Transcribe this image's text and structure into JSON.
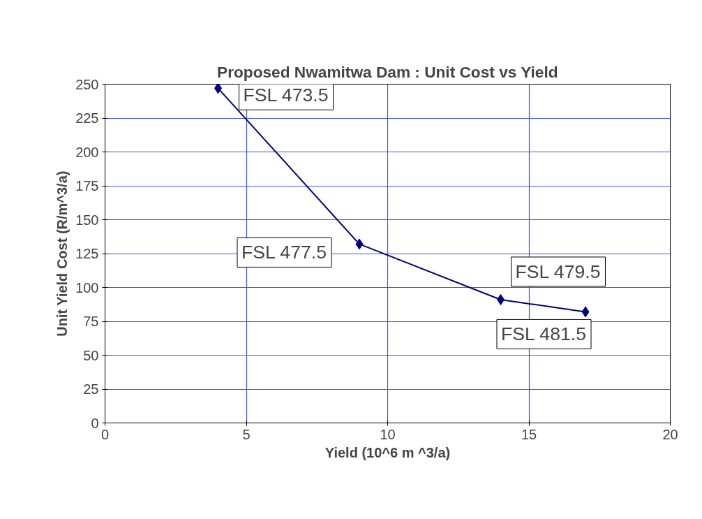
{
  "chart_data": {
    "type": "line",
    "title": "Proposed Nwamitwa Dam : Unit Cost vs Yield",
    "xlabel": "Yield (10^6 m ^3/a)",
    "ylabel": "Unit Yield Cost (R/m^3/a)",
    "x": [
      4,
      9,
      14,
      17
    ],
    "series": [
      {
        "color": "#000080",
        "values": [
          247,
          132,
          91,
          82
        ]
      }
    ],
    "marker": "diamond",
    "line_style": "solid",
    "xlim": [
      0,
      20
    ],
    "xticks": [
      0,
      5,
      10,
      15,
      20
    ],
    "ylim": [
      0,
      250
    ],
    "yticks": [
      0,
      25,
      50,
      75,
      100,
      125,
      150,
      175,
      200,
      225,
      250
    ],
    "grid": true,
    "annotations": [
      {
        "text": "FSL 473.5",
        "x": 4,
        "y": 247
      },
      {
        "text": "FSL 477.5",
        "x": 9,
        "y": 132
      },
      {
        "text": "FSL 479.5",
        "x": 14,
        "y": 91
      },
      {
        "text": "FSL 481.5",
        "x": 17,
        "y": 82
      }
    ]
  }
}
